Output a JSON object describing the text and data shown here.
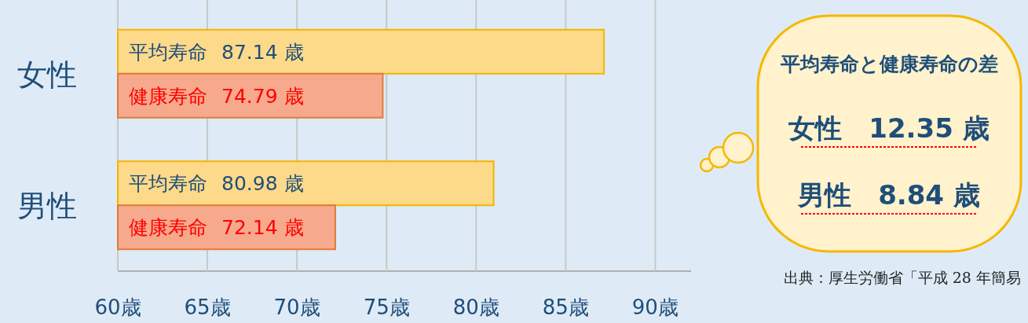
{
  "chart_data": {
    "type": "bar",
    "orientation": "horizontal",
    "categories": [
      "女性",
      "男性"
    ],
    "series": [
      {
        "name": "平均寿命",
        "color": "#fdd98a",
        "values": [
          87.14,
          80.98
        ],
        "value_labels": [
          "87.14 歳",
          "80.98 歳"
        ]
      },
      {
        "name": "健康寿命",
        "color": "#f6a98c",
        "values": [
          74.79,
          72.14
        ],
        "value_labels": [
          "74.79 歳",
          "72.14 歳"
        ]
      }
    ],
    "xlim": [
      60,
      92
    ],
    "xticks": [
      {
        "value": 60,
        "label": "60歳"
      },
      {
        "value": 65,
        "label": "65歳"
      },
      {
        "value": 70,
        "label": "70歳"
      },
      {
        "value": 75,
        "label": "75歳"
      },
      {
        "value": 80,
        "label": "80歳"
      },
      {
        "value": 85,
        "label": "85歳"
      },
      {
        "value": 90,
        "label": "90歳"
      }
    ],
    "grid": "x",
    "legend": false,
    "annotations": [
      "平均寿命と健康寿命の差",
      "女性　12.35 歳",
      "男性　8.84 歳",
      "出典：厚生労働省「平成 28 年簡易"
    ]
  }
}
